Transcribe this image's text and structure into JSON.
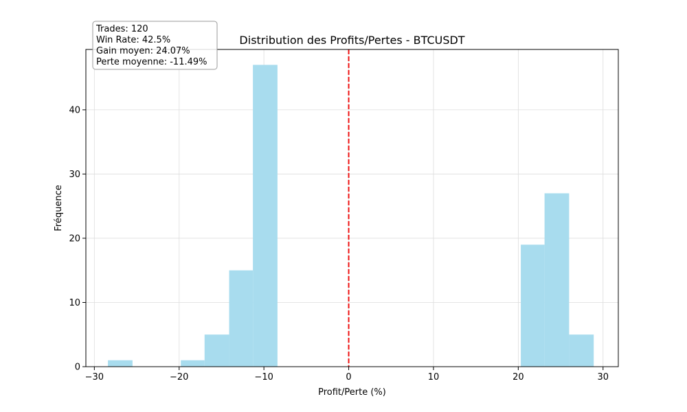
{
  "chart_data": {
    "type": "bar",
    "title": "Distribution des Profits/Pertes - BTCUSDT",
    "xlabel": "Profit/Perte (%)",
    "ylabel": "Fréquence",
    "xlim": [
      -31,
      31.8
    ],
    "ylim": [
      0,
      49.4
    ],
    "xticks": [
      -30,
      -20,
      -10,
      0,
      10,
      20,
      30
    ],
    "yticks": [
      0,
      10,
      20,
      30,
      40
    ],
    "grid": true,
    "bar_color": "#a8dcee",
    "reference_line": {
      "x": 0,
      "color": "#ee1111",
      "style": "dashed"
    },
    "bins": [
      {
        "x0": -28.4,
        "x1": -25.5,
        "count": 1
      },
      {
        "x0": -19.8,
        "x1": -17.0,
        "count": 1
      },
      {
        "x0": -17.0,
        "x1": -14.1,
        "count": 5
      },
      {
        "x0": -14.1,
        "x1": -11.3,
        "count": 15
      },
      {
        "x0": -11.3,
        "x1": -8.4,
        "count": 47
      },
      {
        "x0": 20.3,
        "x1": 23.1,
        "count": 19
      },
      {
        "x0": 23.1,
        "x1": 26.0,
        "count": 27
      },
      {
        "x0": 26.0,
        "x1": 28.9,
        "count": 5
      }
    ],
    "stats_box": {
      "lines": [
        "Trades: 120",
        "Win Rate: 42.5%",
        "Gain moyen: 24.07%",
        "Perte moyenne: -11.49%"
      ]
    }
  }
}
